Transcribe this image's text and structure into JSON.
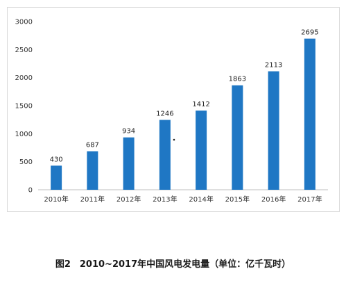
{
  "caption": "图2　2010~2017年中国风电发电量（单位：亿千瓦时）",
  "chart_data": {
    "type": "bar",
    "categories": [
      "2010年",
      "2011年",
      "2012年",
      "2013年",
      "2014年",
      "2015年",
      "2016年",
      "2017年"
    ],
    "values": [
      430,
      687,
      934,
      1246,
      1412,
      1863,
      2113,
      2695
    ],
    "ylim": [
      0,
      3000
    ],
    "yticks": [
      0,
      500,
      1000,
      1500,
      2000,
      2500,
      3000
    ],
    "grid": false,
    "legend": "none",
    "bar_color": "#1f77c4",
    "axis_color": "#bfbfbf"
  }
}
